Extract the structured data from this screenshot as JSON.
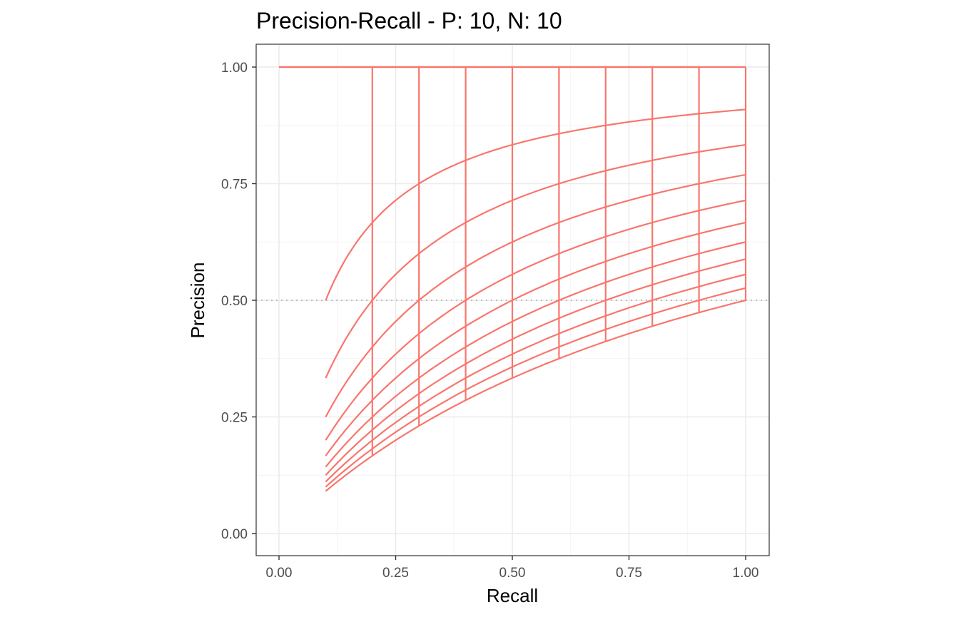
{
  "chart_data": {
    "type": "line",
    "title": "Precision-Recall - P: 10, N: 10",
    "xlabel": "Recall",
    "ylabel": "Precision",
    "xlim": [
      0,
      1
    ],
    "ylim": [
      0,
      1
    ],
    "x_ticks": [
      "0.00",
      "0.25",
      "0.50",
      "0.75",
      "1.00"
    ],
    "y_ticks": [
      "0.00",
      "0.25",
      "0.50",
      "0.75",
      "1.00"
    ],
    "grid": true,
    "baseline_precision": 0.5,
    "line_color": "#F8766D",
    "baseline_color": "#aaaaaa",
    "description": "Interpolated precision-recall curves for all possible rankings of 10 positives and 10 negatives",
    "positives": 10,
    "negatives": 10
  }
}
